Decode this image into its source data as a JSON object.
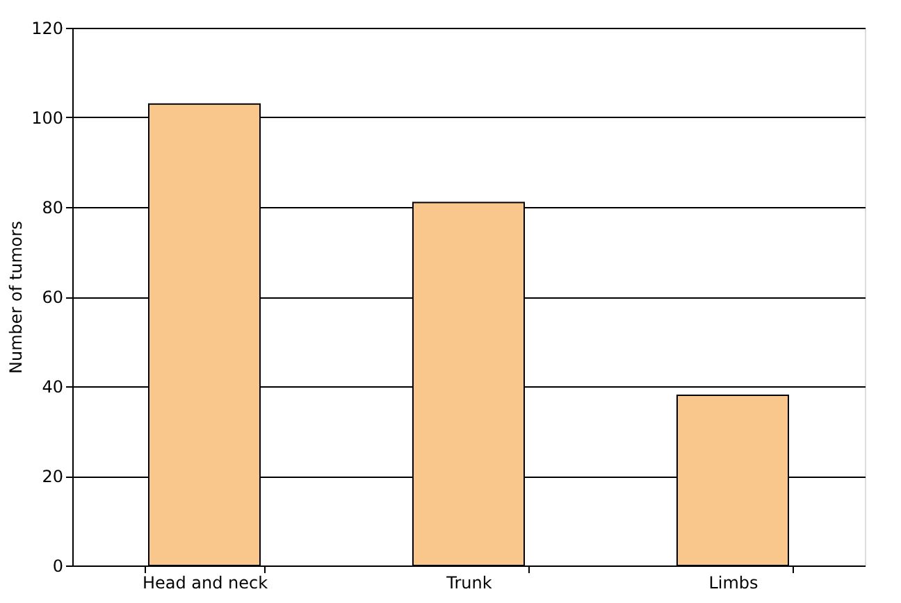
{
  "chart_data": {
    "type": "bar",
    "ylabel": "Number of tumors",
    "categories": [
      "Head and neck",
      "Trunk",
      "Limbs"
    ],
    "values": [
      103,
      81,
      38
    ],
    "color": "#f9c78b",
    "ylim": [
      0,
      120
    ],
    "yticks": [
      0,
      20,
      40,
      60,
      80,
      100,
      120
    ],
    "grid": "y"
  }
}
